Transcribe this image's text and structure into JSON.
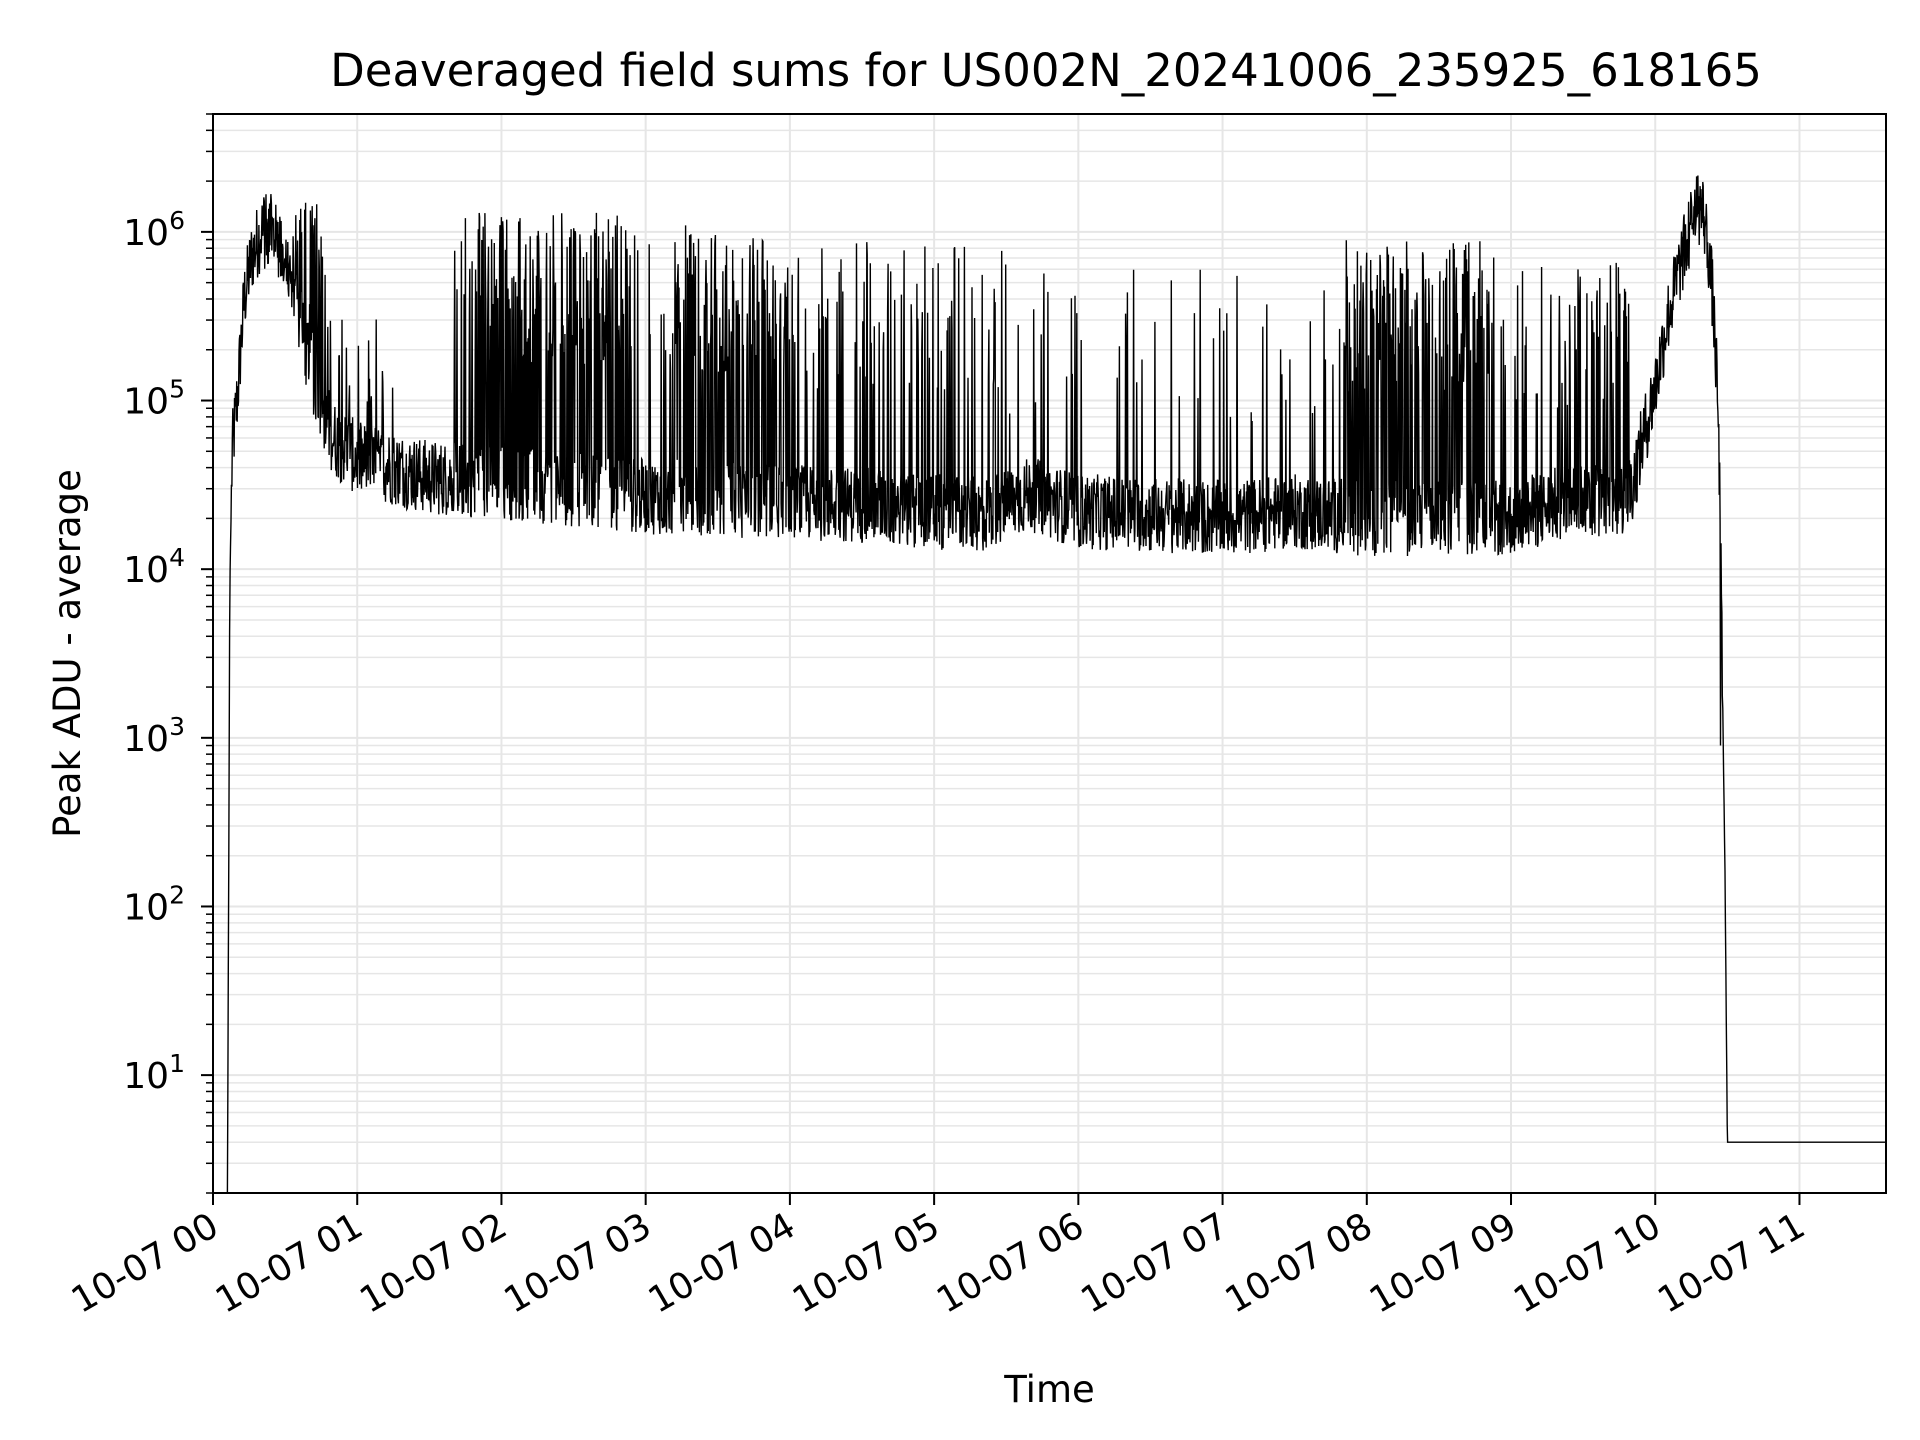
{
  "chart_data": {
    "type": "line",
    "title": "Deaveraged field sums for US002N_20241006_235925_618165",
    "xlabel": "Time",
    "ylabel": "Peak ADU - average",
    "yscale": "log",
    "ylim": [
      2,
      5000000
    ],
    "xlim": [
      "2024-10-07 00:00",
      "2024-10-07 11:36"
    ],
    "grid": true,
    "colors": {
      "line": "#000000",
      "grid": "#e6e6e6"
    },
    "x_ticks": [
      "10-07 00",
      "10-07 01",
      "10-07 02",
      "10-07 03",
      "10-07 04",
      "10-07 05",
      "10-07 06",
      "10-07 07",
      "10-07 08",
      "10-07 09",
      "10-07 10",
      "10-07 11"
    ],
    "y_ticks": [
      {
        "base": "10",
        "exp": "1",
        "value": 10
      },
      {
        "base": "10",
        "exp": "2",
        "value": 100
      },
      {
        "base": "10",
        "exp": "3",
        "value": 1000
      },
      {
        "base": "10",
        "exp": "4",
        "value": 10000
      },
      {
        "base": "10",
        "exp": "5",
        "value": 100000
      },
      {
        "base": "10",
        "exp": "6",
        "value": 1000000
      }
    ],
    "series": [
      {
        "baseline": [
          [
            "2024-10-07 00:06",
            2
          ],
          [
            "2024-10-07 00:07",
            8000
          ],
          [
            "2024-10-07 00:08",
            50000
          ],
          [
            "2024-10-07 00:10",
            100000
          ],
          [
            "2024-10-07 00:13",
            400000
          ],
          [
            "2024-10-07 00:16",
            700000
          ],
          [
            "2024-10-07 00:20",
            1000000
          ],
          [
            "2024-10-07 00:25",
            1000000
          ],
          [
            "2024-10-07 00:30",
            600000
          ],
          [
            "2024-10-07 00:35",
            350000
          ],
          [
            "2024-10-07 00:40",
            150000
          ],
          [
            "2024-10-07 00:50",
            60000
          ],
          [
            "2024-10-07 01:00",
            45000
          ],
          [
            "2024-10-07 01:15",
            40000
          ],
          [
            "2024-10-07 01:30",
            35000
          ],
          [
            "2024-10-07 02:00",
            33000
          ],
          [
            "2024-10-07 02:30",
            30000
          ],
          [
            "2024-10-07 03:00",
            27000
          ],
          [
            "2024-10-07 03:30",
            26000
          ],
          [
            "2024-10-07 04:00",
            25000
          ],
          [
            "2024-10-07 04:30",
            24000
          ],
          [
            "2024-10-07 05:00",
            22000
          ],
          [
            "2024-10-07 05:20",
            21000
          ],
          [
            "2024-10-07 05:40",
            28000
          ],
          [
            "2024-10-07 06:00",
            22000
          ],
          [
            "2024-10-07 06:30",
            21000
          ],
          [
            "2024-10-07 07:00",
            20000
          ],
          [
            "2024-10-07 07:30",
            22000
          ],
          [
            "2024-10-07 08:00",
            20000
          ],
          [
            "2024-10-07 08:30",
            20000
          ],
          [
            "2024-10-07 09:00",
            20000
          ],
          [
            "2024-10-07 09:30",
            27000
          ],
          [
            "2024-10-07 09:45",
            25000
          ],
          [
            "2024-10-07 09:50",
            30000
          ],
          [
            "2024-10-07 09:55",
            60000
          ],
          [
            "2024-10-07 10:00",
            120000
          ],
          [
            "2024-10-07 10:05",
            300000
          ],
          [
            "2024-10-07 10:10",
            600000
          ],
          [
            "2024-10-07 10:15",
            1100000
          ],
          [
            "2024-10-07 10:17",
            1400000
          ],
          [
            "2024-10-07 10:20",
            1300000
          ],
          [
            "2024-10-07 10:22",
            800000
          ],
          [
            "2024-10-07 10:24",
            400000
          ],
          [
            "2024-10-07 10:26",
            100000
          ],
          [
            "2024-10-07 10:27",
            20000
          ],
          [
            "2024-10-07 10:29",
            170
          ],
          [
            "2024-10-07 10:30",
            4
          ],
          [
            "2024-10-07 10:34",
            4
          ]
        ],
        "spike_regions": [
          {
            "start": "2024-10-07 00:20",
            "end": "2024-10-07 00:48",
            "peak": 1500000,
            "density": 0.85
          },
          {
            "start": "2024-10-07 00:48",
            "end": "2024-10-07 01:15",
            "peak": 400000,
            "density": 0.25
          },
          {
            "start": "2024-10-07 01:40",
            "end": "2024-10-07 02:55",
            "peak": 1300000,
            "density": 0.8
          },
          {
            "start": "2024-10-07 02:55",
            "end": "2024-10-07 03:10",
            "peak": 1000000,
            "density": 0.2
          },
          {
            "start": "2024-10-07 03:10",
            "end": "2024-10-07 04:00",
            "peak": 1100000,
            "density": 0.85
          },
          {
            "start": "2024-10-07 04:00",
            "end": "2024-10-07 05:30",
            "peak": 900000,
            "density": 0.35
          },
          {
            "start": "2024-10-07 05:30",
            "end": "2024-10-07 07:50",
            "peak": 600000,
            "density": 0.08
          },
          {
            "start": "2024-10-07 07:50",
            "end": "2024-10-07 08:55",
            "peak": 900000,
            "density": 0.7
          },
          {
            "start": "2024-10-07 08:55",
            "end": "2024-10-07 09:50",
            "peak": 700000,
            "density": 0.35
          },
          {
            "start": "2024-10-07 10:13",
            "end": "2024-10-07 10:19",
            "peak": 2500000,
            "density": 0.5
          }
        ]
      }
    ]
  }
}
